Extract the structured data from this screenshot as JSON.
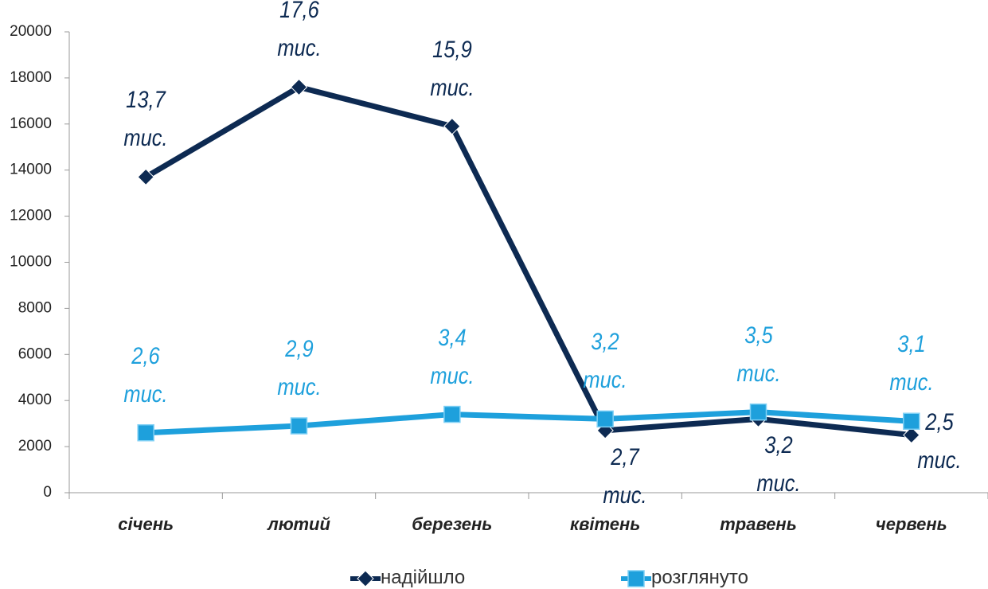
{
  "chart_data": {
    "type": "line",
    "categories": [
      "січень",
      "лютий",
      "березень",
      "квітень",
      "травень",
      "червень"
    ],
    "series": [
      {
        "name": "надійшло",
        "color": "#0d2a52",
        "marker": "diamond",
        "values": [
          13700,
          17600,
          15900,
          2700,
          3200,
          2500
        ],
        "value_labels": [
          "13,7 тис.",
          "17,6 тис.",
          "15,9 тис.",
          "2,7 тис.",
          "3,2 тис.",
          "2,5 тис."
        ]
      },
      {
        "name": "розглянуто",
        "color": "#1ea0dc",
        "marker": "square",
        "values": [
          2600,
          2900,
          3400,
          3200,
          3500,
          3100
        ],
        "value_labels": [
          "2,6 тис.",
          "2,9 тис.",
          "3,4 тис.",
          "3,2 тис.",
          "3,5 тис.",
          "3,1 тис."
        ]
      }
    ],
    "ylim": [
      0,
      20000
    ],
    "yticks": [
      0,
      2000,
      4000,
      6000,
      8000,
      10000,
      12000,
      14000,
      16000,
      18000,
      20000
    ],
    "grid": false,
    "legend": "bottom"
  }
}
